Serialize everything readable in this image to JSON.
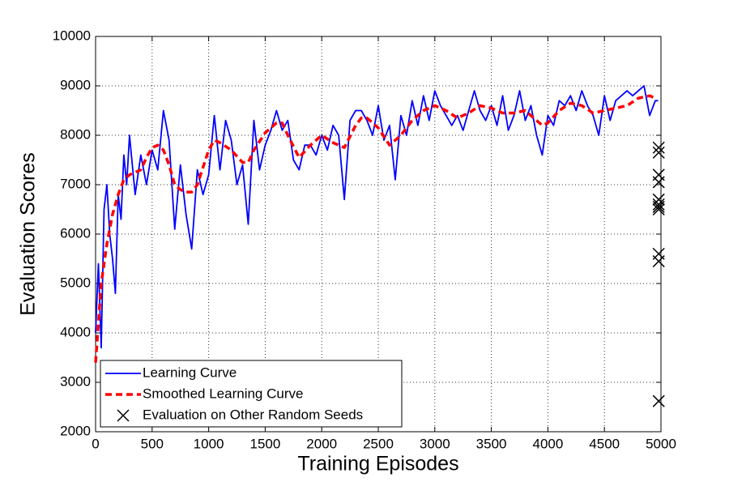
{
  "chart_data": {
    "type": "line",
    "xlabel": "Training Episodes",
    "ylabel": "Evaluation Scores",
    "xlim": [
      0,
      5000
    ],
    "ylim": [
      2000,
      10000
    ],
    "xticks": [
      0,
      500,
      1000,
      1500,
      2000,
      2500,
      3000,
      3500,
      4000,
      4500,
      5000
    ],
    "yticks": [
      2000,
      3000,
      4000,
      5000,
      6000,
      7000,
      8000,
      9000,
      10000
    ],
    "grid": true,
    "legend": "lower left",
    "series": [
      {
        "name": "Learning Curve",
        "color": "#0000ff",
        "line_style": "solid",
        "x": [
          0,
          25,
          50,
          75,
          100,
          125,
          150,
          175,
          200,
          225,
          250,
          275,
          300,
          350,
          400,
          450,
          500,
          550,
          600,
          650,
          700,
          750,
          800,
          850,
          900,
          950,
          1000,
          1050,
          1100,
          1150,
          1200,
          1250,
          1300,
          1350,
          1400,
          1450,
          1500,
          1550,
          1600,
          1650,
          1700,
          1750,
          1800,
          1850,
          1900,
          1950,
          2000,
          2050,
          2100,
          2150,
          2200,
          2250,
          2300,
          2350,
          2400,
          2450,
          2500,
          2550,
          2600,
          2650,
          2700,
          2750,
          2800,
          2850,
          2900,
          2950,
          3000,
          3050,
          3100,
          3150,
          3200,
          3250,
          3300,
          3350,
          3400,
          3450,
          3500,
          3550,
          3600,
          3650,
          3700,
          3750,
          3800,
          3850,
          3900,
          3950,
          4000,
          4050,
          4100,
          4150,
          4200,
          4250,
          4300,
          4350,
          4400,
          4450,
          4500,
          4550,
          4600,
          4650,
          4700,
          4750,
          4800,
          4850,
          4900,
          4950,
          4975
        ],
        "values": [
          4000,
          5400,
          3700,
          6500,
          7000,
          6000,
          5500,
          4800,
          6800,
          6300,
          7600,
          7000,
          8000,
          6800,
          7600,
          7000,
          7700,
          7300,
          8500,
          7900,
          6100,
          7400,
          6400,
          5700,
          7300,
          6800,
          7200,
          8400,
          7300,
          8300,
          7900,
          7000,
          7400,
          6200,
          8300,
          7300,
          7800,
          8100,
          8500,
          8100,
          8300,
          7500,
          7300,
          7800,
          7800,
          7600,
          8000,
          7700,
          8200,
          8000,
          6700,
          8300,
          8500,
          8500,
          8300,
          8000,
          8600,
          7900,
          8200,
          7100,
          8400,
          8000,
          8700,
          8200,
          8800,
          8300,
          8900,
          8600,
          8400,
          8200,
          8400,
          8100,
          8500,
          8900,
          8500,
          8300,
          8600,
          8200,
          8800,
          8100,
          8400,
          8900,
          8300,
          8600,
          8000,
          7600,
          8400,
          8200,
          8700,
          8600,
          8800,
          8500,
          8900,
          8600,
          8400,
          8000,
          8800,
          8300,
          8700,
          8800,
          8900,
          8800,
          8900,
          9000,
          8400,
          8700,
          8700
        ]
      },
      {
        "name": "Smoothed Learning Curve",
        "color": "#ff0000",
        "line_style": "dashed",
        "x": [
          0,
          50,
          100,
          150,
          200,
          250,
          300,
          350,
          400,
          450,
          500,
          550,
          600,
          650,
          700,
          750,
          800,
          850,
          900,
          950,
          1000,
          1050,
          1100,
          1200,
          1300,
          1350,
          1400,
          1500,
          1600,
          1650,
          1700,
          1800,
          1900,
          2000,
          2100,
          2200,
          2300,
          2350,
          2400,
          2500,
          2600,
          2700,
          2800,
          2900,
          3000,
          3100,
          3200,
          3300,
          3400,
          3500,
          3600,
          3700,
          3800,
          3900,
          3950,
          4000,
          4100,
          4200,
          4300,
          4400,
          4500,
          4600,
          4700,
          4800,
          4900,
          4950
        ],
        "values": [
          3400,
          5000,
          5800,
          6400,
          6800,
          7100,
          7200,
          7250,
          7300,
          7550,
          7750,
          7800,
          7700,
          7400,
          7000,
          6900,
          6850,
          6850,
          7000,
          7350,
          7700,
          7900,
          7850,
          7700,
          7450,
          7450,
          7700,
          8050,
          8250,
          8250,
          8000,
          7550,
          7800,
          8000,
          7850,
          7750,
          8200,
          8350,
          8350,
          8150,
          7800,
          8000,
          8300,
          8500,
          8600,
          8500,
          8350,
          8450,
          8600,
          8550,
          8450,
          8450,
          8500,
          8300,
          8200,
          8250,
          8500,
          8650,
          8600,
          8450,
          8500,
          8550,
          8600,
          8750,
          8800,
          8750
        ]
      },
      {
        "name": "Evaluation on Other Random Seeds",
        "color": "#000000",
        "marker": "x",
        "x": [
          4980,
          4980,
          4980,
          4980,
          4980,
          4980,
          4980,
          4980,
          4980,
          4980,
          4980
        ],
        "values": [
          7750,
          7650,
          7200,
          7050,
          6700,
          6600,
          6550,
          6500,
          5600,
          5450,
          2620
        ]
      }
    ]
  }
}
